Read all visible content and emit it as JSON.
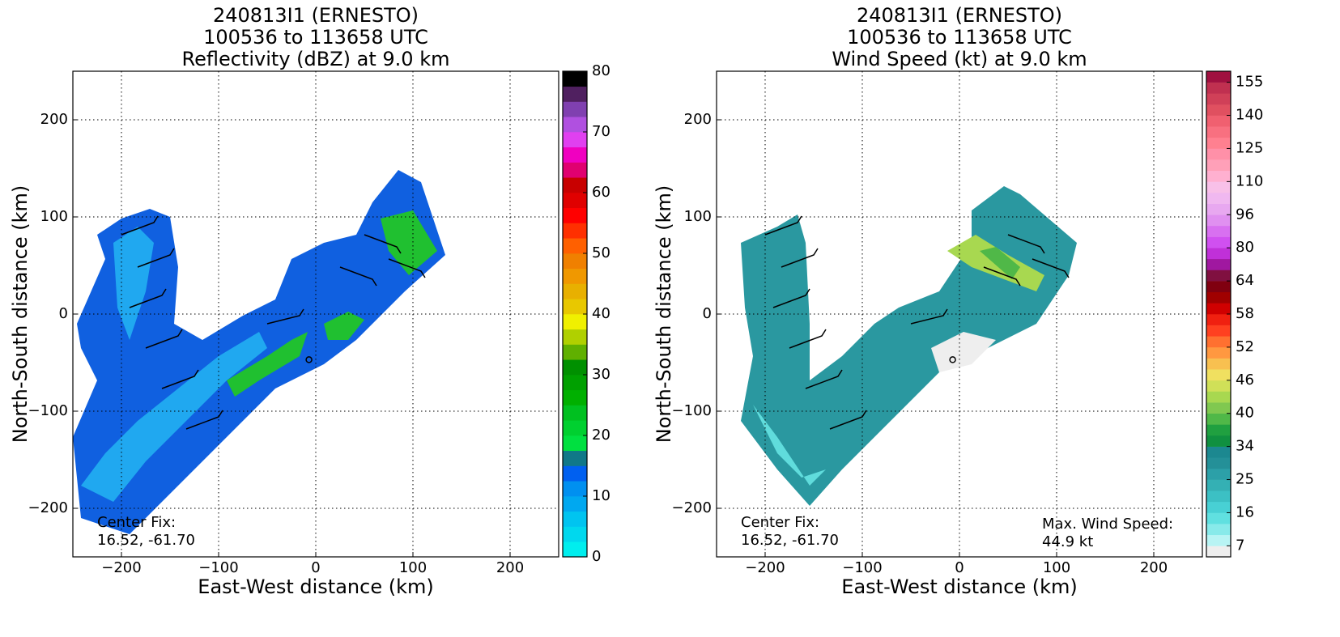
{
  "chart_data": [
    {
      "type": "heatmap",
      "title": "240813I1 (ERNESTO)",
      "subtitle": "100536 to 113658 UTC",
      "field": "Reflectivity (dBZ) at 9.0 km",
      "xlabel": "East-West distance (km)",
      "ylabel": "North-South distance (km)",
      "xlim": [
        -250,
        250
      ],
      "ylim": [
        -250,
        250
      ],
      "xticks": [
        {
          "value": -200,
          "label": "−200"
        },
        {
          "value": -100,
          "label": "−100"
        },
        0,
        100,
        200
      ],
      "yticks": [
        {
          "value": -200,
          "label": "−200"
        },
        {
          "value": -100,
          "label": "−100"
        },
        0,
        100,
        200
      ],
      "grid": true,
      "center": [
        -7,
        -47
      ],
      "annotations": [
        "Center Fix:",
        "16.52, -61.70"
      ],
      "colorbar": {
        "clim": [
          0,
          80
        ],
        "ticks": [
          0,
          10,
          20,
          30,
          40,
          50,
          60,
          70,
          80
        ],
        "colors": [
          "#00eeee",
          "#00d8ee",
          "#00c4f0",
          "#00a8f0",
          "#0090f0",
          "#0060f0",
          "#107888",
          "#00e040",
          "#00d030",
          "#00c020",
          "#00b000",
          "#00a000",
          "#009000",
          "#60b000",
          "#b0d000",
          "#f0f000",
          "#e8c800",
          "#e8b000",
          "#f09800",
          "#f08000",
          "#ff6000",
          "#ff3000",
          "#ff0000",
          "#e00000",
          "#c80000",
          "#e00070",
          "#f000c0",
          "#e040f0",
          "#b050e0",
          "#8040b0",
          "#502060",
          "#000000"
        ]
      }
    },
    {
      "type": "heatmap",
      "title": "240813I1 (ERNESTO)",
      "subtitle": "100536 to 113658 UTC",
      "field": "Wind Speed (kt) at 9.0 km",
      "xlabel": "East-West distance (km)",
      "ylabel": "North-South distance (km)",
      "xlim": [
        -250,
        250
      ],
      "ylim": [
        -250,
        250
      ],
      "xticks": [
        {
          "value": -200,
          "label": "−200"
        },
        {
          "value": -100,
          "label": "−100"
        },
        0,
        100,
        200
      ],
      "yticks": [
        {
          "value": -200,
          "label": "−200"
        },
        {
          "value": -100,
          "label": "−100"
        },
        0,
        100,
        200
      ],
      "grid": true,
      "center": [
        -7,
        -47
      ],
      "annotations": [
        "Center Fix:",
        "16.52, -61.70"
      ],
      "max_wind": [
        "Max. Wind Speed:",
        "44.9 kt"
      ],
      "colorbar": {
        "levels": [
          4,
          7,
          10,
          13,
          16,
          19,
          22,
          25,
          28,
          31,
          34,
          36,
          38,
          40,
          42,
          44,
          46,
          48,
          50,
          52,
          54,
          56,
          58,
          60,
          62,
          64,
          69,
          75,
          80,
          85,
          91,
          96,
          101,
          105,
          110,
          115,
          120,
          125,
          130,
          135,
          140,
          145,
          150,
          155,
          160
        ],
        "ticks": [
          7,
          16,
          25,
          34,
          40,
          46,
          52,
          58,
          64,
          80,
          96,
          110,
          125,
          140,
          155
        ],
        "colors": [
          "#eeeeee",
          "#b8f4f4",
          "#88eaea",
          "#60e0e0",
          "#48d0d4",
          "#3cc0c4",
          "#34b0b4",
          "#2ca0a8",
          "#249098",
          "#1c8890",
          "#109040",
          "#20a040",
          "#50b848",
          "#80c850",
          "#a8d850",
          "#d0e058",
          "#f0e060",
          "#f8c050",
          "#ff9840",
          "#ff7030",
          "#ff4020",
          "#f02010",
          "#d00000",
          "#a00000",
          "#800010",
          "#801040",
          "#a018a0",
          "#c030d8",
          "#d050f0",
          "#d870f0",
          "#e090f0",
          "#e8a8f0",
          "#f0b8f0",
          "#f8c0e8",
          "#ffb0d0",
          "#ffa0b8",
          "#ff90a8",
          "#ff8090",
          "#f87080",
          "#f06070",
          "#e05060",
          "#d04058",
          "#c03050",
          "#a01040"
        ]
      }
    }
  ]
}
